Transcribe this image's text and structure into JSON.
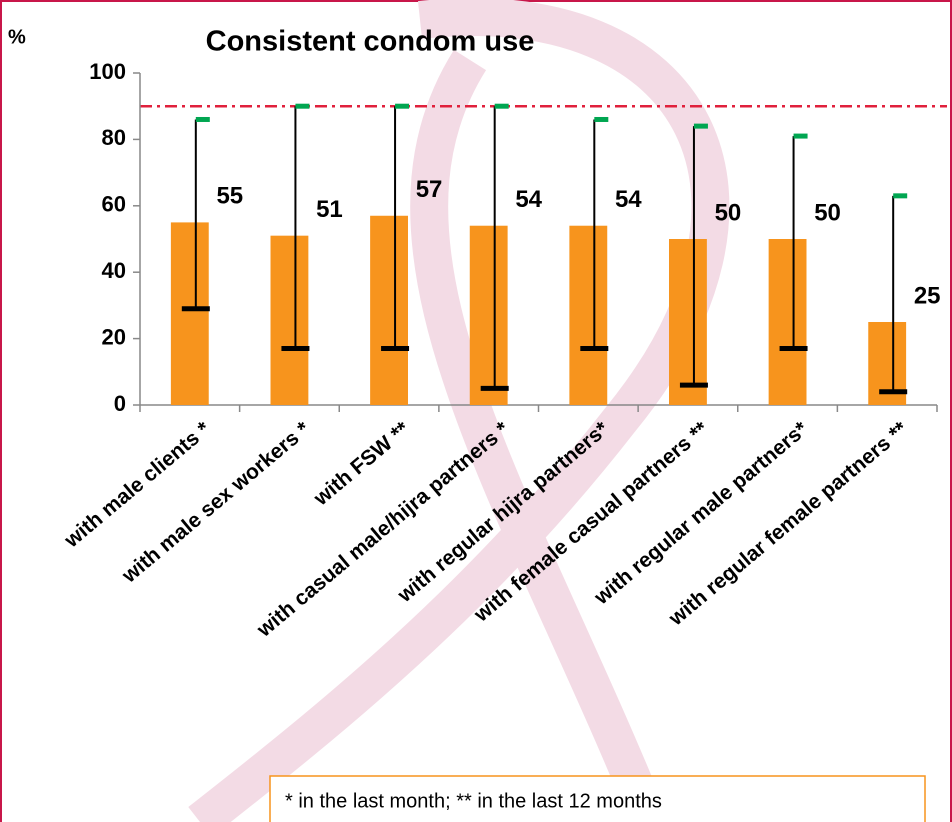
{
  "chart_data": {
    "type": "bar",
    "title": "Consistent condom use",
    "y_label": "%",
    "categories": [
      "with male clients *",
      "with male sex workers *",
      "with FSW **",
      "with casual male/hijra partners *",
      "with regular hijra partners*",
      "with female casual partners **",
      "with regular male partners*",
      "with regular female partners **"
    ],
    "values": [
      55,
      51,
      57,
      54,
      54,
      50,
      50,
      25
    ],
    "min": [
      29,
      17,
      17,
      5,
      17,
      6,
      17,
      4
    ],
    "max": [
      86,
      90,
      90,
      90,
      86,
      84,
      81,
      63
    ],
    "color": "#f7941d",
    "min_color": "#000000",
    "max_color": "#00a651",
    "target": 90,
    "target_color": "#e0203c",
    "ylim": [
      0,
      100
    ],
    "yticks": [
      0,
      20,
      40,
      60,
      80,
      100
    ],
    "note": "* in the last month;   ** in the last 12 months"
  }
}
